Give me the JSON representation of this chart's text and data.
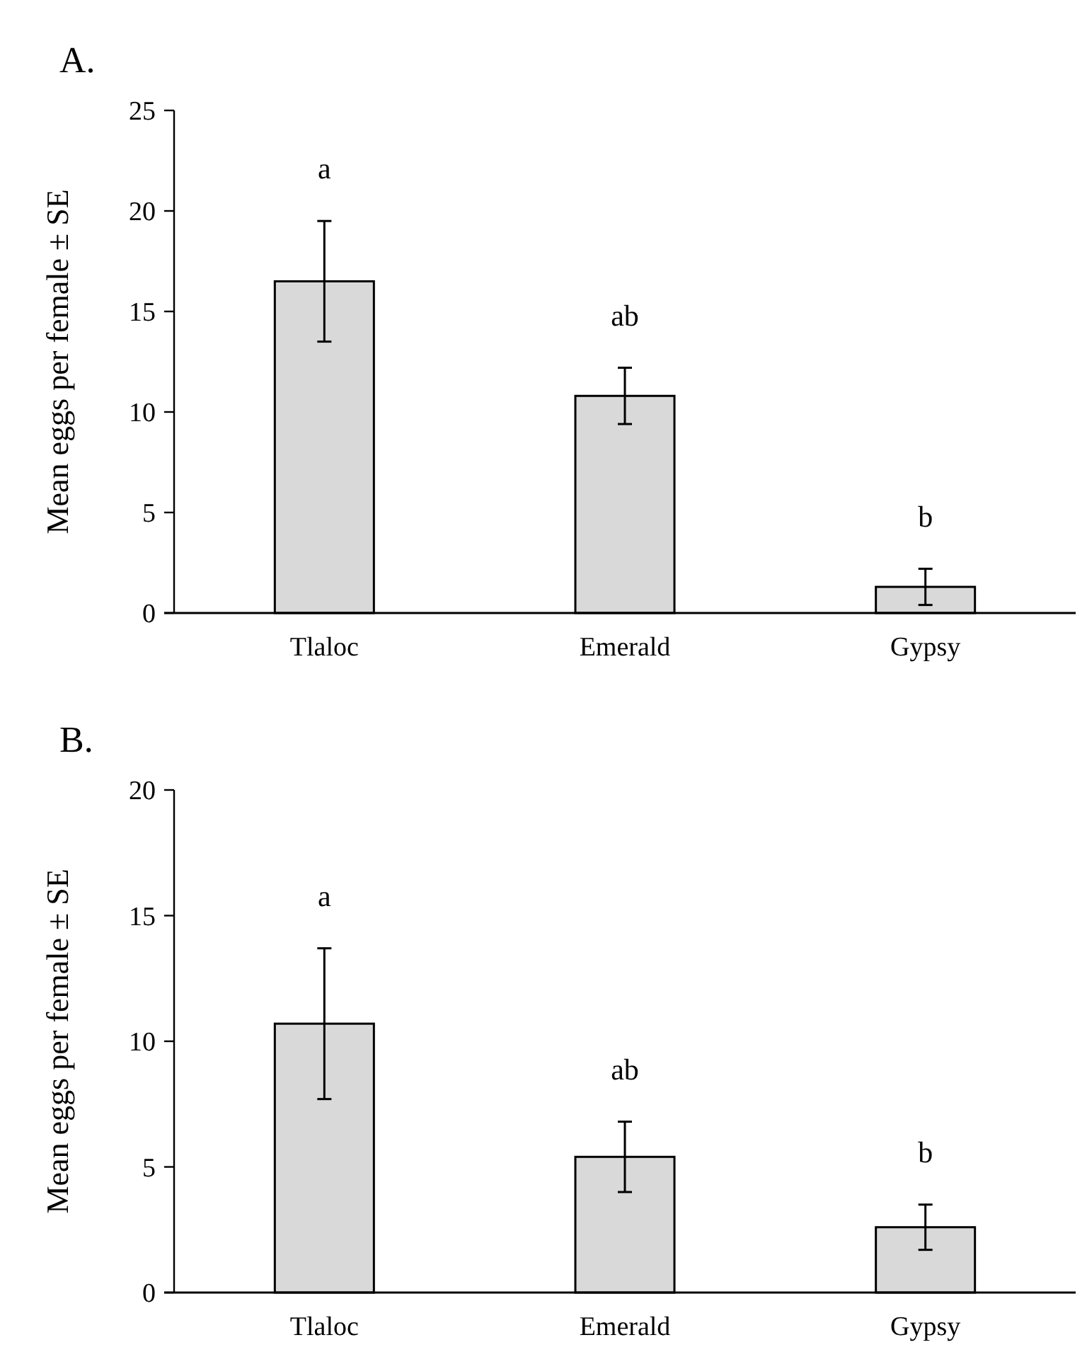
{
  "chart_data": [
    {
      "type": "bar",
      "title": "A.",
      "ylabel": "Mean eggs per female ± SE",
      "categories": [
        "Tlaloc",
        "Emerald",
        "Gypsy"
      ],
      "values": [
        16.5,
        10.8,
        1.3
      ],
      "errors": [
        3.0,
        1.4,
        0.9
      ],
      "color": "#d9d9d9",
      "ylim": [
        0,
        25
      ],
      "yticks": [
        0,
        5,
        10,
        15,
        20,
        25
      ],
      "annotations": [
        "a",
        "ab",
        "b"
      ]
    },
    {
      "type": "bar",
      "title": "B.",
      "ylabel": "Mean eggs per female ± SE",
      "categories": [
        "Tlaloc",
        "Emerald",
        "Gypsy"
      ],
      "values": [
        10.7,
        5.4,
        2.6
      ],
      "errors": [
        3.0,
        1.4,
        0.9
      ],
      "color": "#d9d9d9",
      "ylim": [
        0,
        20
      ],
      "yticks": [
        0,
        5,
        10,
        15,
        20
      ],
      "annotations": [
        "a",
        "ab",
        "b"
      ]
    }
  ]
}
